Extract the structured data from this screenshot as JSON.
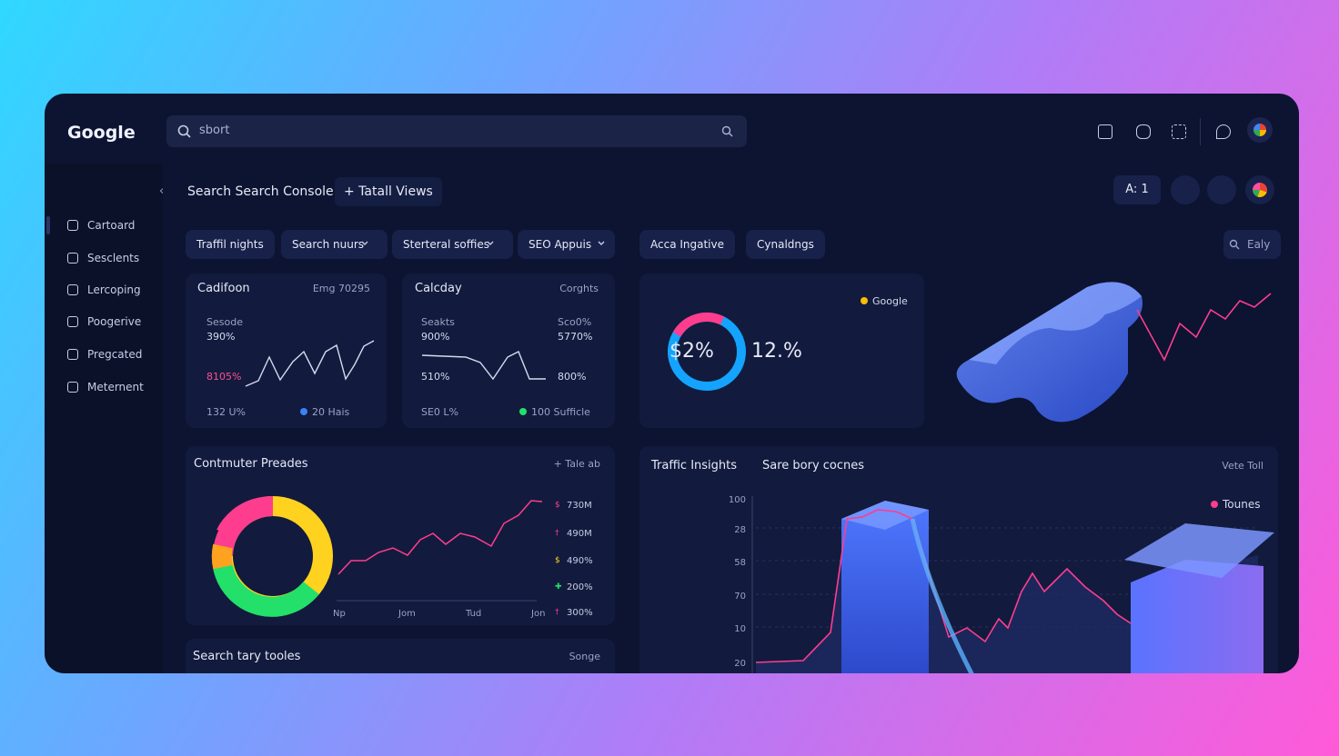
{
  "header": {
    "logo": "Google",
    "search_placeholder": "sbort"
  },
  "sidebar": {
    "items": [
      "Cartoard",
      "Sesclents",
      "Lercoping",
      "Poogerive",
      "Pregcated",
      "Meternent"
    ]
  },
  "toolbar": {
    "title": "Search Search Console",
    "views": "+ Tatall Views",
    "badge": "A: 1"
  },
  "filters": [
    "Traffil nights",
    "Search nuurs",
    "Sterteral soffies",
    "SEO Appuis",
    "Acca Ingative",
    "Cynaldngs",
    "Ealy"
  ],
  "card1": {
    "title": "Cadifoon",
    "meta": "Emg 70295",
    "labels": [
      "Sesode",
      "390%",
      "8105%",
      "132 U%"
    ],
    "legend": "20 Hais"
  },
  "card2": {
    "title": "Calcday",
    "meta": "Corghts",
    "left": [
      "Seakts",
      "900%",
      "510%",
      "SE0 L%"
    ],
    "right": [
      "Sco0%",
      "5770%",
      "800%"
    ],
    "legend": "100 Sufficle"
  },
  "card3": {
    "legend": "Google",
    "big_left": "$2%",
    "big_right": "12.%"
  },
  "card4": {
    "title": "Contmuter Preades",
    "action": "+ Tale ab",
    "x_labels": [
      "Np",
      "Jom",
      "Tud",
      "Jon"
    ],
    "legend": [
      "730M",
      "490M",
      "490%",
      "200%",
      "300%"
    ]
  },
  "card5": {
    "title": "Traffic Insights",
    "subtitle": "Sare bory cocnes",
    "action": "Vete Toll",
    "legend": "Tounes",
    "y_labels": [
      "100",
      "28",
      "58",
      "70",
      "10",
      "20"
    ]
  },
  "card6": {
    "title": "Search tary tooles",
    "action": "Songe"
  }
}
